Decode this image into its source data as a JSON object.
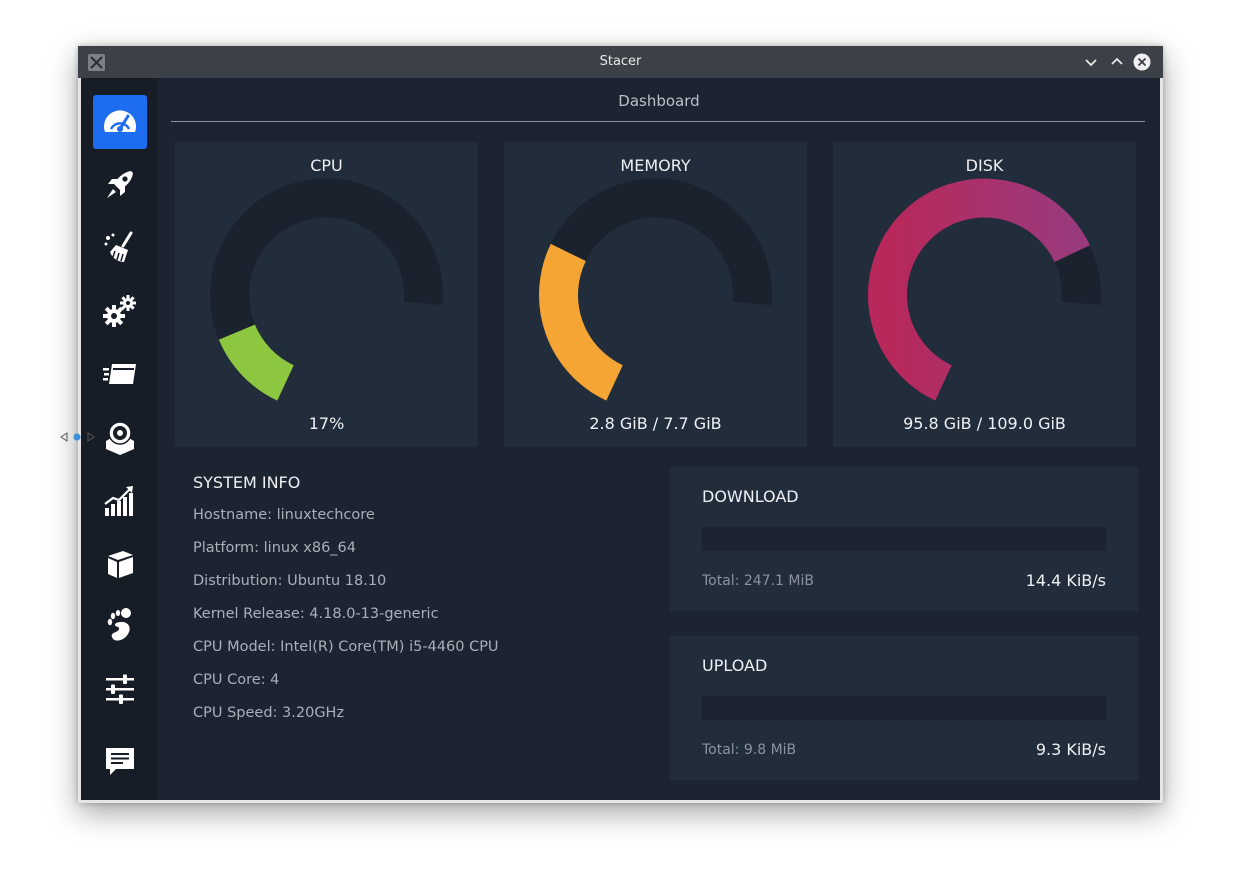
{
  "window": {
    "title": "Stacer"
  },
  "page": {
    "title": "Dashboard"
  },
  "sidebar": {
    "items": [
      {
        "name": "dashboard",
        "icon": "speedometer-icon",
        "active": true
      },
      {
        "name": "startup-apps",
        "icon": "rocket-icon",
        "active": false
      },
      {
        "name": "system-cleaner",
        "icon": "broom-icon",
        "active": false
      },
      {
        "name": "services",
        "icon": "gears-icon",
        "active": false
      },
      {
        "name": "processes",
        "icon": "processes-icon",
        "active": false
      },
      {
        "name": "uninstaller",
        "icon": "uninstaller-icon",
        "active": false
      },
      {
        "name": "resources",
        "icon": "bar-chart-icon",
        "active": false
      },
      {
        "name": "apt-repository-manager",
        "icon": "package-icon",
        "active": false
      },
      {
        "name": "gnome-settings",
        "icon": "gnome-foot-icon",
        "active": false
      },
      {
        "name": "settings",
        "icon": "sliders-icon",
        "active": false
      },
      {
        "name": "feedback",
        "icon": "chat-icon",
        "active": false
      }
    ]
  },
  "gauges": {
    "cpu": {
      "label": "CPU",
      "value_text": "17%",
      "fraction": 0.17,
      "color": "#8dc63f"
    },
    "memory": {
      "label": "MEMORY",
      "value_text": "2.8 GiB / 7.7 GiB",
      "fraction": 0.364,
      "color": "#f5a533"
    },
    "disk": {
      "label": "DISK",
      "value_text": "95.8 GiB / 109.0 GiB",
      "fraction": 0.879,
      "color_start": "#b8285a",
      "color_end": "#9a3a7c"
    }
  },
  "gauge_track_color": "#1a222d",
  "system_info": {
    "title": "SYSTEM INFO",
    "rows": [
      "Hostname: linuxtechcore",
      "Platform: linux x86_64",
      "Distribution: Ubuntu 18.10",
      "Kernel Release: 4.18.0-13-generic",
      "CPU Model: Intel(R) Core(TM) i5-4460 CPU",
      "CPU Core: 4",
      "CPU Speed: 3.20GHz"
    ]
  },
  "download": {
    "title": "DOWNLOAD",
    "total": "Total: 247.1 MiB",
    "speed": "14.4 KiB/s",
    "level": 0
  },
  "upload": {
    "title": "UPLOAD",
    "total": "Total: 9.8 MiB",
    "speed": "9.3 KiB/s",
    "level": 0
  }
}
